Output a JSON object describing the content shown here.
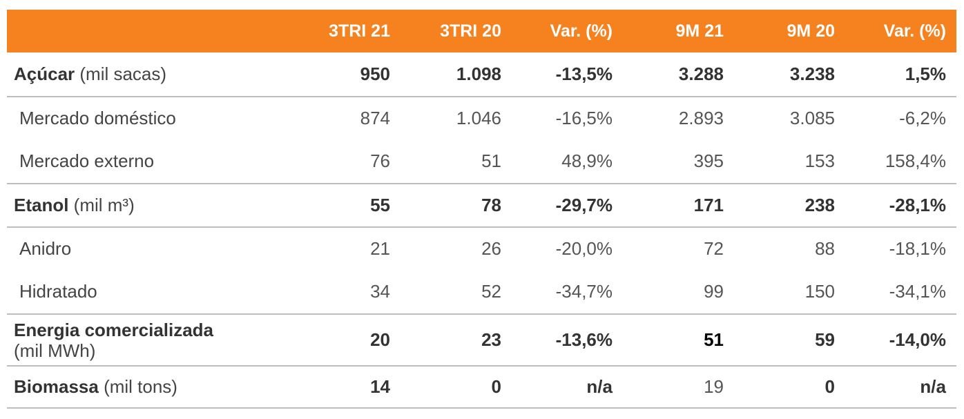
{
  "header": [
    "",
    "3TRI 21",
    "3TRI 20",
    "Var. (%)",
    "9M 21",
    "9M 20",
    "Var. (%)"
  ],
  "acucar": {
    "label": "Açúcar",
    "unit": " (mil sacas)",
    "values": [
      "950",
      "1.098",
      "-13,5%",
      "3.288",
      "3.238",
      "1,5%"
    ]
  },
  "mercado_domestico": {
    "label": "Mercado doméstico",
    "values": [
      "874",
      "1.046",
      "-16,5%",
      "2.893",
      "3.085",
      "-6,2%"
    ]
  },
  "mercado_externo": {
    "label": "Mercado externo",
    "values": [
      "76",
      "51",
      "48,9%",
      "395",
      "153",
      "158,4%"
    ]
  },
  "etanol": {
    "label": "Etanol",
    "unit": " (mil m³)",
    "values": [
      "55",
      "78",
      "-29,7%",
      "171",
      "238",
      "-28,1%"
    ]
  },
  "anidro": {
    "label": "Anidro",
    "values": [
      "21",
      "26",
      "-20,0%",
      "72",
      "88",
      "-18,1%"
    ]
  },
  "hidratado": {
    "label": "Hidratado",
    "values": [
      "34",
      "52",
      "-34,7%",
      "99",
      "150",
      "-34,1%"
    ]
  },
  "energia": {
    "label": "Energia comercializada",
    "unit": "(mil MWh)",
    "values": [
      "20",
      "23",
      "-13,6%",
      "51",
      "59",
      "-14,0%"
    ]
  },
  "biomassa": {
    "label": "Biomassa",
    "unit": " (mil tons)",
    "values": [
      "14",
      "0",
      "n/a",
      "19",
      "0",
      "n/a"
    ]
  }
}
